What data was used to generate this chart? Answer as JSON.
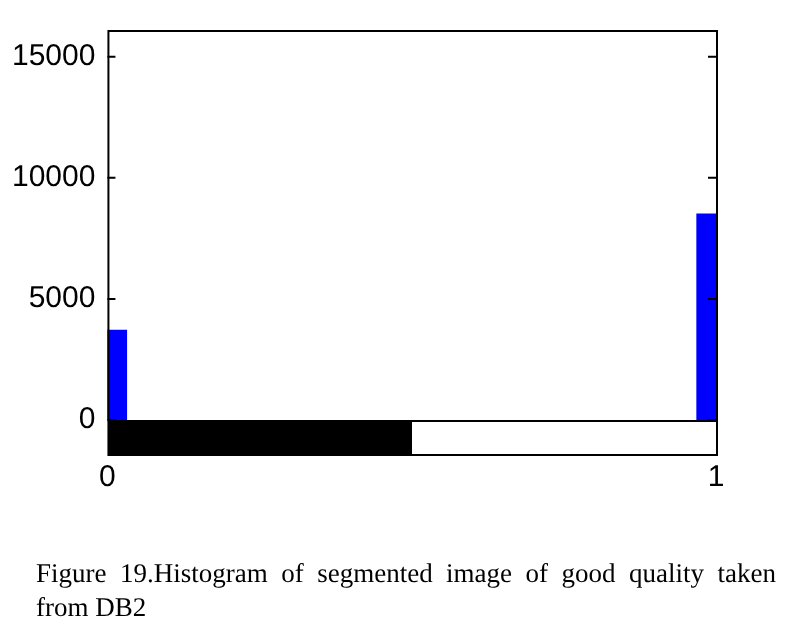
{
  "chart_data": {
    "type": "bar",
    "x": [
      0,
      1
    ],
    "values": [
      3700,
      8500
    ],
    "color": "#0000ff",
    "xlim": [
      0,
      1
    ],
    "xticks": [
      0,
      1
    ],
    "ylim": [
      0,
      16100
    ],
    "yticks": [
      0,
      5000,
      10000,
      15000
    ],
    "grid": false,
    "legend": false,
    "annotations": [
      "Figure 19.Histogram of segmented image of good quality taken from DB2"
    ]
  }
}
